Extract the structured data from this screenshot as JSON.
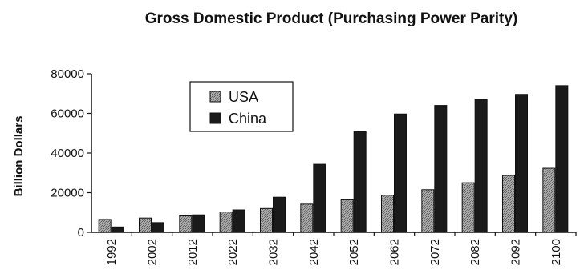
{
  "chart_data": {
    "type": "bar",
    "title": "Gross Domestic Product (Purchasing Power Parity)",
    "xlabel": "",
    "ylabel": "Billion Dollars",
    "categories": [
      "1992",
      "2002",
      "2012",
      "2022",
      "2032",
      "2042",
      "2052",
      "2062",
      "2072",
      "2082",
      "2092",
      "2100"
    ],
    "series": [
      {
        "name": "USA",
        "color": "#9a9a9a",
        "pattern": "stipple",
        "values": [
          6500,
          7200,
          8700,
          10300,
          12000,
          14200,
          16400,
          18700,
          21500,
          25000,
          28700,
          32300
        ]
      },
      {
        "name": "China",
        "color": "#1a1a1a",
        "pattern": "solid",
        "values": [
          2700,
          4900,
          8800,
          11300,
          17700,
          34300,
          50800,
          59700,
          64000,
          67200,
          69600,
          74000
        ]
      }
    ],
    "ylim": [
      0,
      80000
    ],
    "yticks": [
      0,
      20000,
      40000,
      60000,
      80000
    ],
    "grid": false,
    "legend_position": "top-left"
  }
}
